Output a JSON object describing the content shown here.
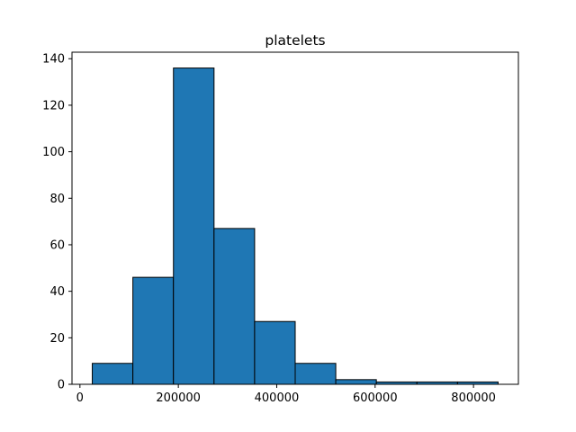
{
  "chart_data": {
    "type": "bar",
    "title": "platelets",
    "xlabel": "",
    "ylabel": "",
    "bin_edges": [
      25100,
      107590,
      190080,
      272570,
      355060,
      437550,
      520040,
      602530,
      685020,
      767510,
      850000
    ],
    "values": [
      9,
      46,
      136,
      67,
      27,
      9,
      2,
      1,
      1,
      1
    ],
    "xlim": [
      -16145,
      891245
    ],
    "ylim": [
      0,
      142.8
    ],
    "x_ticks": [
      0,
      200000,
      400000,
      600000,
      800000
    ],
    "y_ticks": [
      0,
      20,
      40,
      60,
      80,
      100,
      120,
      140
    ],
    "x_tick_labels": [
      "0",
      "200000",
      "400000",
      "600000",
      "800000"
    ],
    "y_tick_labels": [
      "0",
      "20",
      "40",
      "60",
      "80",
      "100",
      "120",
      "140"
    ],
    "bar_color": "#1f77b4",
    "edge_color": "#000000",
    "grid": false,
    "legend": "none"
  }
}
